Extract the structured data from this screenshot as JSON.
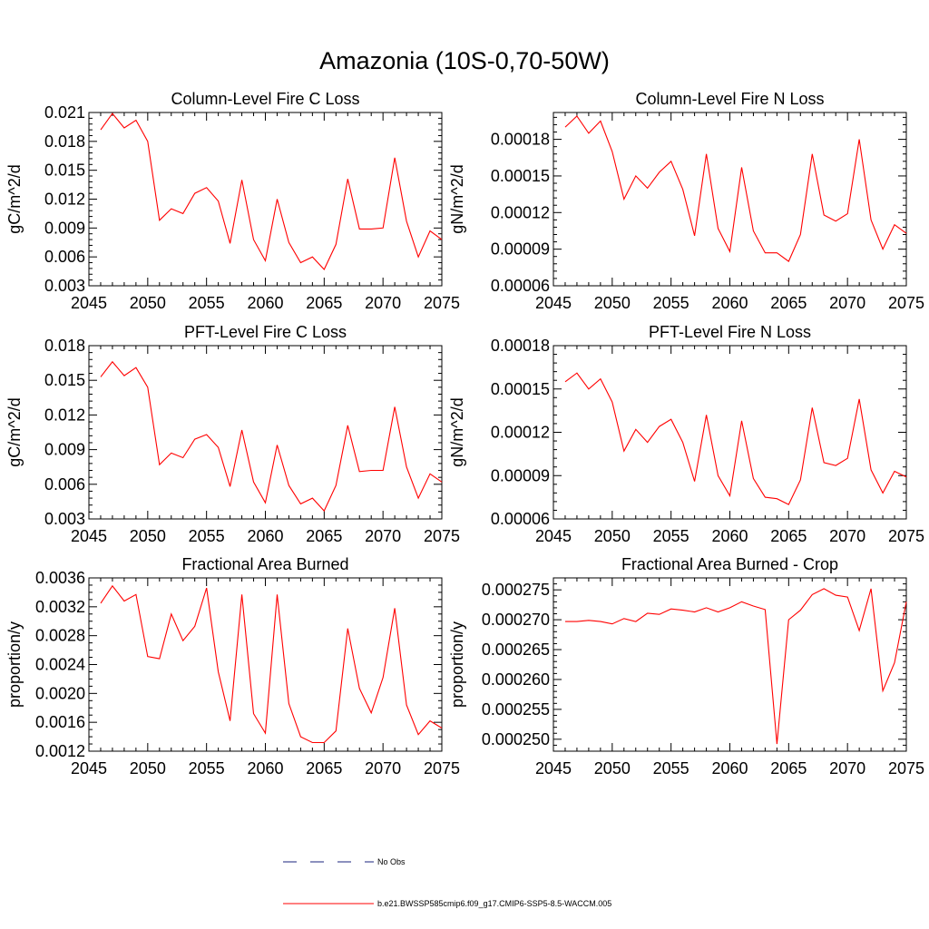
{
  "figure": {
    "title": "Amazonia (10S-0,70-50W)"
  },
  "legend": {
    "items": [
      {
        "label": "No Obs",
        "style": "dashed",
        "color": "#1a237e"
      },
      {
        "label": "b.e21.BWSSP585cmip6.f09_g17.CMIP6-SSP5-8.5-WACCM.005",
        "style": "solid",
        "color": "#ff0000"
      }
    ]
  },
  "chart_data": [
    {
      "type": "line",
      "title": "Column-Level Fire C Loss",
      "ylabel": "gC/m^2/d",
      "xlim": [
        2045,
        2075
      ],
      "ylim": [
        0.003,
        0.021
      ],
      "xticks": [
        2045,
        2050,
        2055,
        2060,
        2065,
        2070,
        2075
      ],
      "xtick_labels": [
        "2045",
        "2050",
        "2055",
        "2060",
        "2065",
        "2070",
        "2075"
      ],
      "yticks": [
        0.003,
        0.006,
        0.009,
        0.012,
        0.015,
        0.018,
        0.021
      ],
      "ytick_labels": [
        "0.003",
        "0.006",
        "0.009",
        "0.012",
        "0.015",
        "0.018",
        "0.021"
      ],
      "ytick_minor_step": 0.0006,
      "color": "#ff0000",
      "x": [
        2046,
        2047,
        2048,
        2049,
        2050,
        2051,
        2052,
        2053,
        2054,
        2055,
        2056,
        2057,
        2058,
        2059,
        2060,
        2061,
        2062,
        2063,
        2064,
        2065,
        2066,
        2067,
        2068,
        2069,
        2070,
        2071,
        2072,
        2073,
        2074,
        2075
      ],
      "values": [
        0.0192,
        0.0209,
        0.0194,
        0.0202,
        0.018,
        0.0098,
        0.011,
        0.0105,
        0.0126,
        0.0132,
        0.0118,
        0.0074,
        0.014,
        0.0078,
        0.0056,
        0.012,
        0.0075,
        0.0054,
        0.006,
        0.0047,
        0.0073,
        0.0141,
        0.0089,
        0.0089,
        0.009,
        0.0163,
        0.0097,
        0.006,
        0.0087,
        0.0078
      ]
    },
    {
      "type": "line",
      "title": "Column-Level Fire N Loss",
      "ylabel": "gN/m^2/d",
      "xlim": [
        2045,
        2075
      ],
      "ylim": [
        6e-05,
        0.000202
      ],
      "xticks": [
        2045,
        2050,
        2055,
        2060,
        2065,
        2070,
        2075
      ],
      "xtick_labels": [
        "2045",
        "2050",
        "2055",
        "2060",
        "2065",
        "2070",
        "2075"
      ],
      "yticks": [
        6e-05,
        9e-05,
        0.00012,
        0.00015,
        0.00018
      ],
      "ytick_labels": [
        "0.00006",
        "0.00009",
        "0.00012",
        "0.00015",
        "0.00018"
      ],
      "ytick_minor_step": 6e-06,
      "color": "#ff0000",
      "x": [
        2046,
        2047,
        2048,
        2049,
        2050,
        2051,
        2052,
        2053,
        2054,
        2055,
        2056,
        2057,
        2058,
        2059,
        2060,
        2061,
        2062,
        2063,
        2064,
        2065,
        2066,
        2067,
        2068,
        2069,
        2070,
        2071,
        2072,
        2073,
        2074,
        2075
      ],
      "values": [
        0.00019,
        0.000199,
        0.000185,
        0.000195,
        0.00017,
        0.000131,
        0.00015,
        0.00014,
        0.000153,
        0.000162,
        0.000139,
        0.000101,
        0.000168,
        0.000107,
        8.8e-05,
        0.000157,
        0.000105,
        8.7e-05,
        8.7e-05,
        8e-05,
        0.000102,
        0.000168,
        0.000118,
        0.000113,
        0.000119,
        0.00018,
        0.000114,
        9e-05,
        0.00011,
        0.000103
      ]
    },
    {
      "type": "line",
      "title": "PFT-Level Fire C Loss",
      "ylabel": "gC/m^2/d",
      "xlim": [
        2045,
        2075
      ],
      "ylim": [
        0.003,
        0.018
      ],
      "xticks": [
        2045,
        2050,
        2055,
        2060,
        2065,
        2070,
        2075
      ],
      "xtick_labels": [
        "2045",
        "2050",
        "2055",
        "2060",
        "2065",
        "2070",
        "2075"
      ],
      "yticks": [
        0.003,
        0.006,
        0.009,
        0.012,
        0.015,
        0.018
      ],
      "ytick_labels": [
        "0.003",
        "0.006",
        "0.009",
        "0.012",
        "0.015",
        "0.018"
      ],
      "ytick_minor_step": 0.0006,
      "color": "#ff0000",
      "x": [
        2046,
        2047,
        2048,
        2049,
        2050,
        2051,
        2052,
        2053,
        2054,
        2055,
        2056,
        2057,
        2058,
        2059,
        2060,
        2061,
        2062,
        2063,
        2064,
        2065,
        2066,
        2067,
        2068,
        2069,
        2070,
        2071,
        2072,
        2073,
        2074,
        2075
      ],
      "values": [
        0.0153,
        0.0166,
        0.0154,
        0.0161,
        0.0144,
        0.0077,
        0.0087,
        0.0083,
        0.0099,
        0.0103,
        0.0092,
        0.0058,
        0.0107,
        0.0062,
        0.0044,
        0.0094,
        0.0059,
        0.0043,
        0.0048,
        0.0037,
        0.0059,
        0.0111,
        0.0071,
        0.0072,
        0.0072,
        0.0127,
        0.0075,
        0.0048,
        0.0069,
        0.0062
      ]
    },
    {
      "type": "line",
      "title": "PFT-Level Fire N Loss",
      "ylabel": "gN/m^2/d",
      "xlim": [
        2045,
        2075
      ],
      "ylim": [
        6e-05,
        0.00018
      ],
      "xticks": [
        2045,
        2050,
        2055,
        2060,
        2065,
        2070,
        2075
      ],
      "xtick_labels": [
        "2045",
        "2050",
        "2055",
        "2060",
        "2065",
        "2070",
        "2075"
      ],
      "yticks": [
        6e-05,
        9e-05,
        0.00012,
        0.00015,
        0.00018
      ],
      "ytick_labels": [
        "0.00006",
        "0.00009",
        "0.00012",
        "0.00015",
        "0.00018"
      ],
      "ytick_minor_step": 6e-06,
      "color": "#ff0000",
      "x": [
        2046,
        2047,
        2048,
        2049,
        2050,
        2051,
        2052,
        2053,
        2054,
        2055,
        2056,
        2057,
        2058,
        2059,
        2060,
        2061,
        2062,
        2063,
        2064,
        2065,
        2066,
        2067,
        2068,
        2069,
        2070,
        2071,
        2072,
        2073,
        2074,
        2075
      ],
      "values": [
        0.000155,
        0.000161,
        0.00015,
        0.000157,
        0.000141,
        0.000107,
        0.000122,
        0.000113,
        0.000124,
        0.000129,
        0.000113,
        8.6e-05,
        0.000132,
        9e-05,
        7.6e-05,
        0.000128,
        8.8e-05,
        7.5e-05,
        7.4e-05,
        7e-05,
        8.7e-05,
        0.000137,
        9.9e-05,
        9.7e-05,
        0.000102,
        0.000143,
        9.4e-05,
        7.8e-05,
        9.3e-05,
        8.9e-05
      ]
    },
    {
      "type": "line",
      "title": "Fractional Area Burned",
      "ylabel": "proportion/y",
      "xlim": [
        2045,
        2075
      ],
      "ylim": [
        0.0012,
        0.0036
      ],
      "xticks": [
        2045,
        2050,
        2055,
        2060,
        2065,
        2070,
        2075
      ],
      "xtick_labels": [
        "2045",
        "2050",
        "2055",
        "2060",
        "2065",
        "2070",
        "2075"
      ],
      "yticks": [
        0.0012,
        0.0016,
        0.002,
        0.0024,
        0.0028,
        0.0032,
        0.0036
      ],
      "ytick_labels": [
        "0.0012",
        "0.0016",
        "0.0020",
        "0.0024",
        "0.0028",
        "0.0032",
        "0.0036"
      ],
      "ytick_minor_step": 0.0001,
      "color": "#ff0000",
      "x": [
        2046,
        2047,
        2048,
        2049,
        2050,
        2051,
        2052,
        2053,
        2054,
        2055,
        2056,
        2057,
        2058,
        2059,
        2060,
        2061,
        2062,
        2063,
        2064,
        2065,
        2066,
        2067,
        2068,
        2069,
        2070,
        2071,
        2072,
        2073,
        2074,
        2075
      ],
      "values": [
        0.00325,
        0.00349,
        0.00328,
        0.00337,
        0.00251,
        0.00248,
        0.0031,
        0.00273,
        0.00293,
        0.00346,
        0.0023,
        0.00162,
        0.00337,
        0.00172,
        0.00145,
        0.00337,
        0.00186,
        0.0014,
        0.00132,
        0.00132,
        0.00148,
        0.0029,
        0.00207,
        0.00173,
        0.00222,
        0.00318,
        0.00184,
        0.00143,
        0.00162,
        0.00152
      ]
    },
    {
      "type": "line",
      "title": "Fractional Area Burned - Crop",
      "ylabel": "proportion/y",
      "xlim": [
        2045,
        2075
      ],
      "ylim": [
        0.000248,
        0.000277
      ],
      "xticks": [
        2045,
        2050,
        2055,
        2060,
        2065,
        2070,
        2075
      ],
      "xtick_labels": [
        "2045",
        "2050",
        "2055",
        "2060",
        "2065",
        "2070",
        "2075"
      ],
      "yticks": [
        0.00025,
        0.000255,
        0.00026,
        0.000265,
        0.00027,
        0.000275
      ],
      "ytick_labels": [
        "0.000250",
        "0.000255",
        "0.000260",
        "0.000265",
        "0.000270",
        "0.000275"
      ],
      "ytick_minor_step": 1e-06,
      "color": "#ff0000",
      "x": [
        2046,
        2047,
        2048,
        2049,
        2050,
        2051,
        2052,
        2053,
        2054,
        2055,
        2056,
        2057,
        2058,
        2059,
        2060,
        2061,
        2062,
        2063,
        2064,
        2065,
        2066,
        2067,
        2068,
        2069,
        2070,
        2071,
        2072,
        2073,
        2074,
        2075
      ],
      "values": [
        0.0002697,
        0.0002697,
        0.0002699,
        0.0002697,
        0.0002693,
        0.0002702,
        0.0002697,
        0.0002711,
        0.0002709,
        0.0002718,
        0.0002716,
        0.0002713,
        0.000272,
        0.0002713,
        0.000272,
        0.000273,
        0.0002723,
        0.0002717,
        0.0002492,
        0.00027,
        0.0002716,
        0.0002742,
        0.0002752,
        0.0002741,
        0.0002738,
        0.0002682,
        0.0002752,
        0.0002581,
        0.0002628,
        0.000273
      ]
    }
  ]
}
